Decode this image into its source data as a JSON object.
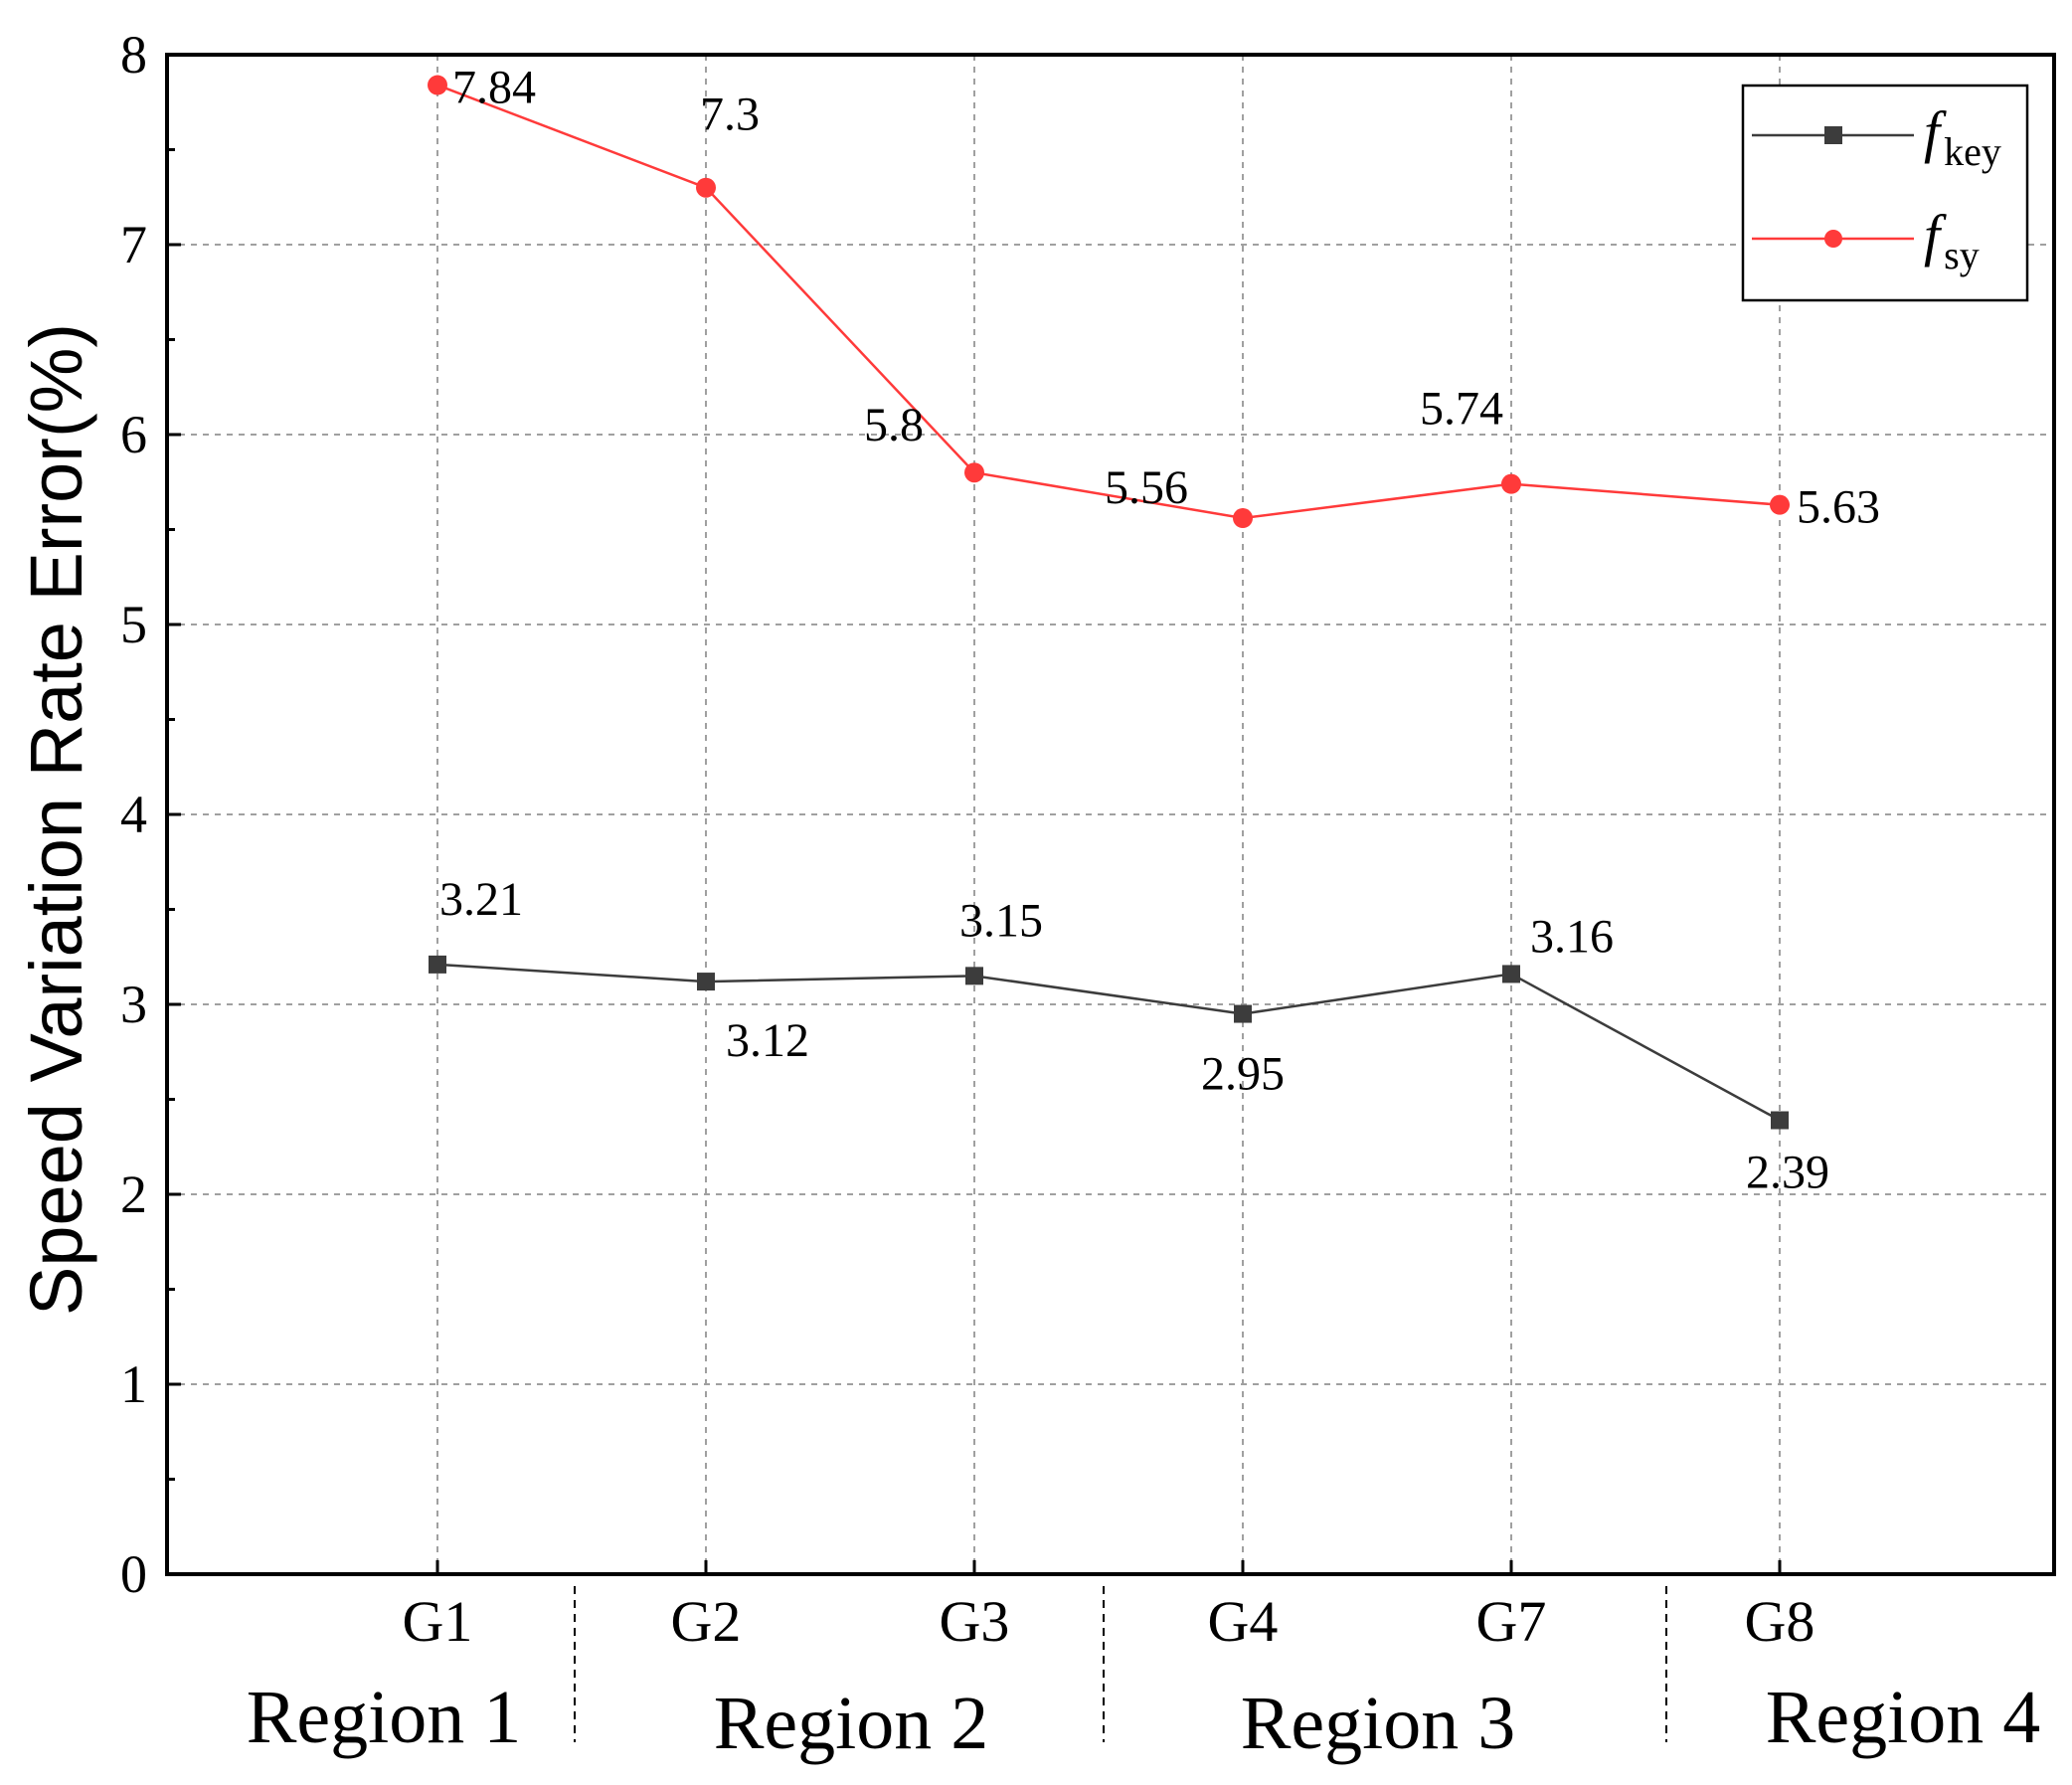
{
  "chart_data": {
    "type": "line",
    "categories": [
      "G1",
      "G2",
      "G3",
      "G4",
      "G7",
      "G8"
    ],
    "ylabel": "Speed Variation Rate Error(%)",
    "ylim": [
      0,
      8
    ],
    "yticks": [
      "0",
      "1",
      "2",
      "3",
      "4",
      "5",
      "6",
      "7",
      "8"
    ],
    "grid": true,
    "legend_position": "top-right",
    "regions": [
      "Region 1",
      "Region 2",
      "Region 3",
      "Region 4"
    ],
    "series": [
      {
        "name": "f_key",
        "legend_main": "f",
        "legend_sub": "key",
        "color": "#3c3c3c",
        "marker": "square",
        "values": [
          3.21,
          3.12,
          3.15,
          2.95,
          3.16,
          2.39
        ],
        "labels": [
          "3.21",
          "3.12",
          "3.15",
          "2.95",
          "3.16",
          "2.39"
        ]
      },
      {
        "name": "f_sy",
        "legend_main": "f",
        "legend_sub": "sy",
        "color": "#ff3a3a",
        "marker": "circle",
        "values": [
          7.84,
          7.3,
          5.8,
          5.56,
          5.74,
          5.63
        ],
        "labels": [
          "7.84",
          "7.3",
          "5.8",
          "5.56",
          "5.74",
          "5.63"
        ]
      }
    ]
  }
}
